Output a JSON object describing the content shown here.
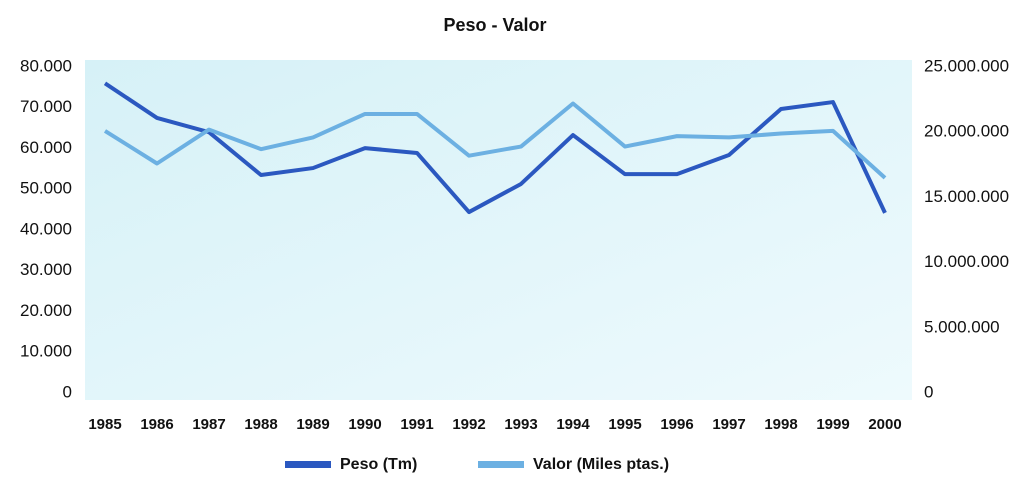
{
  "chart_data": {
    "type": "line",
    "title": "Peso - Valor",
    "categories": [
      "1985",
      "1986",
      "1987",
      "1988",
      "1989",
      "1990",
      "1991",
      "1992",
      "1993",
      "1994",
      "1995",
      "1996",
      "1997",
      "1998",
      "1999",
      "2000"
    ],
    "series": [
      {
        "name": "Peso (Tm)",
        "color": "#2b58c0",
        "values": [
          76000,
          67500,
          64000,
          53500,
          55200,
          60100,
          58900,
          44400,
          51300,
          63300,
          53700,
          53700,
          58400,
          69700,
          71400,
          44200
        ]
      },
      {
        "name": "Valor (Miles ptas.)",
        "color": "#6cb0e2",
        "axis": "y2",
        "values": [
          20100000,
          17600000,
          20200000,
          18700000,
          19600000,
          21400000,
          21400000,
          18200000,
          18900000,
          22200000,
          18900000,
          19700000,
          19600000,
          19900000,
          20100000,
          16500000
        ]
      }
    ],
    "ylim": [
      0,
      80000
    ],
    "yticks": [
      0,
      {
        "value": 10000,
        "label": "10.000"
      },
      {
        "value": 20000,
        "label": "20.000"
      },
      {
        "value": 30000,
        "label": "30.000"
      },
      {
        "value": 40000,
        "label": "40.000"
      },
      {
        "value": 50000,
        "label": "50.000"
      },
      {
        "value": 60000,
        "label": "60.000"
      },
      {
        "value": 70000,
        "label": "70.000"
      },
      {
        "value": 80000,
        "label": "80.000"
      }
    ],
    "y2lim": [
      0,
      25000000
    ],
    "y2ticks": [
      0,
      {
        "value": 5000000,
        "label": "5.000.000"
      },
      {
        "value": 10000000,
        "label": "10.000.000"
      },
      {
        "value": 15000000,
        "label": "15.000.000"
      },
      {
        "value": 20000000,
        "label": "20.000.000"
      },
      {
        "value": 25000000,
        "label": "25.000.000"
      }
    ],
    "grid": false,
    "legend": "bottom"
  }
}
